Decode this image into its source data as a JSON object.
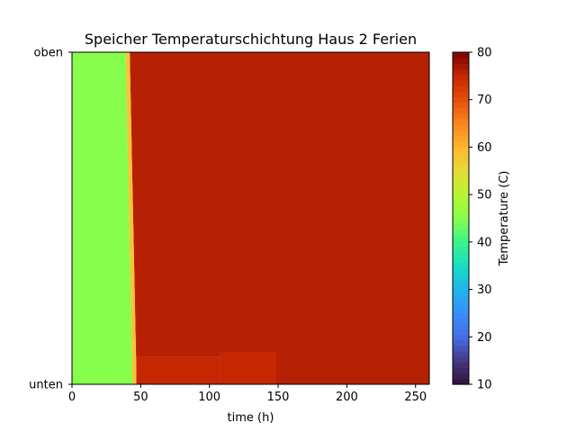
{
  "chart_data": {
    "type": "heatmap",
    "title": "Speicher Temperaturschichtung Haus 2 Ferien",
    "xlabel": "time (h)",
    "ylabel": "",
    "xlim": [
      0,
      260
    ],
    "xticks": [
      0,
      50,
      100,
      150,
      200,
      250
    ],
    "y_categories": [
      "unten",
      "oben"
    ],
    "colorbar": {
      "label": "Temperature (C)",
      "range": [
        10,
        80
      ],
      "ticks": [
        10,
        20,
        30,
        40,
        50,
        60,
        70,
        80
      ],
      "colormap": "turbo"
    },
    "regions": [
      {
        "name": "initial",
        "x_start": 0,
        "x_end_top": 39,
        "x_end_bottom": 44,
        "temperature": 45
      },
      {
        "name": "transition",
        "width_h": 3,
        "temperature": 58
      },
      {
        "name": "heated",
        "x_start_top": 42,
        "x_start_bottom": 47,
        "x_end": 260,
        "temperature": 76
      },
      {
        "name": "bottom-patch-1",
        "x_start": 47,
        "x_end": 108,
        "y_top": 0.083,
        "temperature": 75
      },
      {
        "name": "bottom-patch-2",
        "x_start": 108,
        "x_end": 148,
        "y_top": 0.095,
        "temperature": 75
      }
    ]
  }
}
